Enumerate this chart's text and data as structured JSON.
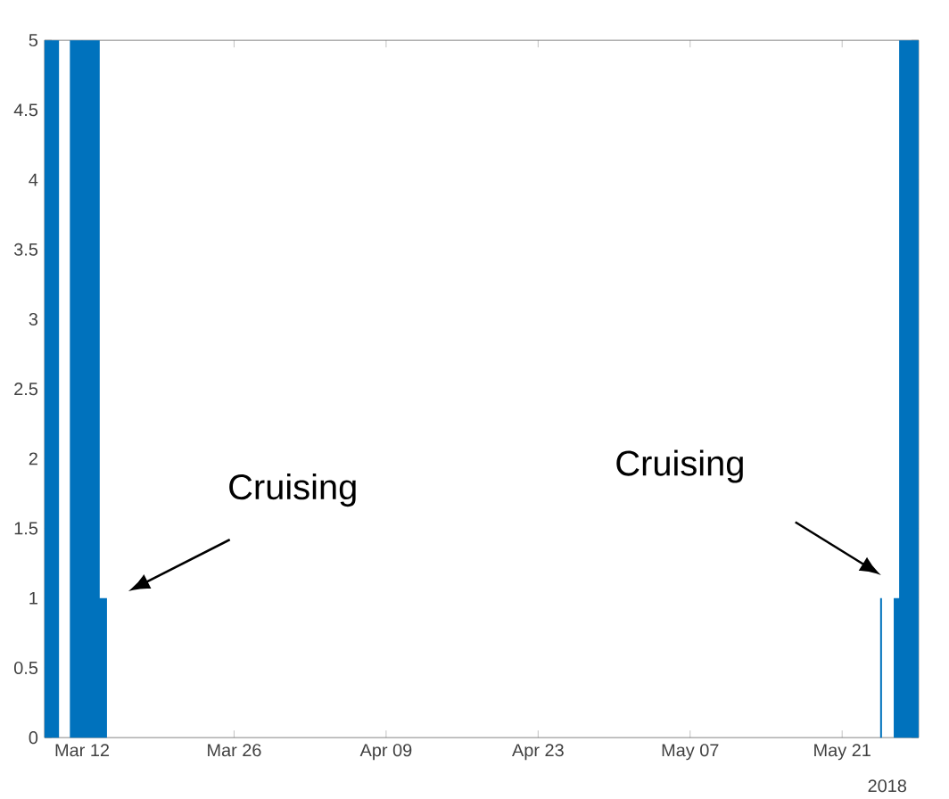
{
  "chart_data": {
    "type": "area",
    "xlabel": "2018",
    "x": [
      "2018-03-08T13:00",
      "2018-03-09T21:00",
      "2018-03-09T21:00",
      "2018-03-10T21:00",
      "2018-03-10T21:00",
      "2018-03-13T15:00",
      "2018-03-13T15:00",
      "2018-03-14T07:00",
      "2018-03-14T07:00",
      "2018-05-24T12:00",
      "2018-05-24T12:00",
      "2018-05-24T16:00",
      "2018-05-24T16:00",
      "2018-05-25T18:00",
      "2018-05-25T18:00",
      "2018-05-26T06:00",
      "2018-05-26T06:00",
      "2018-05-28T01:00"
    ],
    "series": [
      {
        "color": "#0072bd",
        "values": [
          5,
          5,
          0,
          0,
          5,
          5,
          1,
          1,
          0,
          0,
          1,
          1,
          0,
          0,
          1,
          1,
          5,
          5
        ]
      }
    ],
    "xlim": [
      "2018-03-08T13:00",
      "2018-05-28T01:00"
    ],
    "xticks": [
      {
        "value": "2018-03-12",
        "label": "Mar 12"
      },
      {
        "value": "2018-03-26",
        "label": "Mar 26"
      },
      {
        "value": "2018-04-09",
        "label": "Apr 09"
      },
      {
        "value": "2018-04-23",
        "label": "Apr 23"
      },
      {
        "value": "2018-05-07",
        "label": "May 07"
      },
      {
        "value": "2018-05-21",
        "label": "May 21"
      }
    ],
    "ylim": [
      0,
      5
    ],
    "yticks": [
      0,
      0.5,
      1,
      1.5,
      2,
      2.5,
      3,
      3.5,
      4,
      4.5,
      5
    ],
    "annotations": [
      "Cruising",
      "Cruising"
    ]
  }
}
